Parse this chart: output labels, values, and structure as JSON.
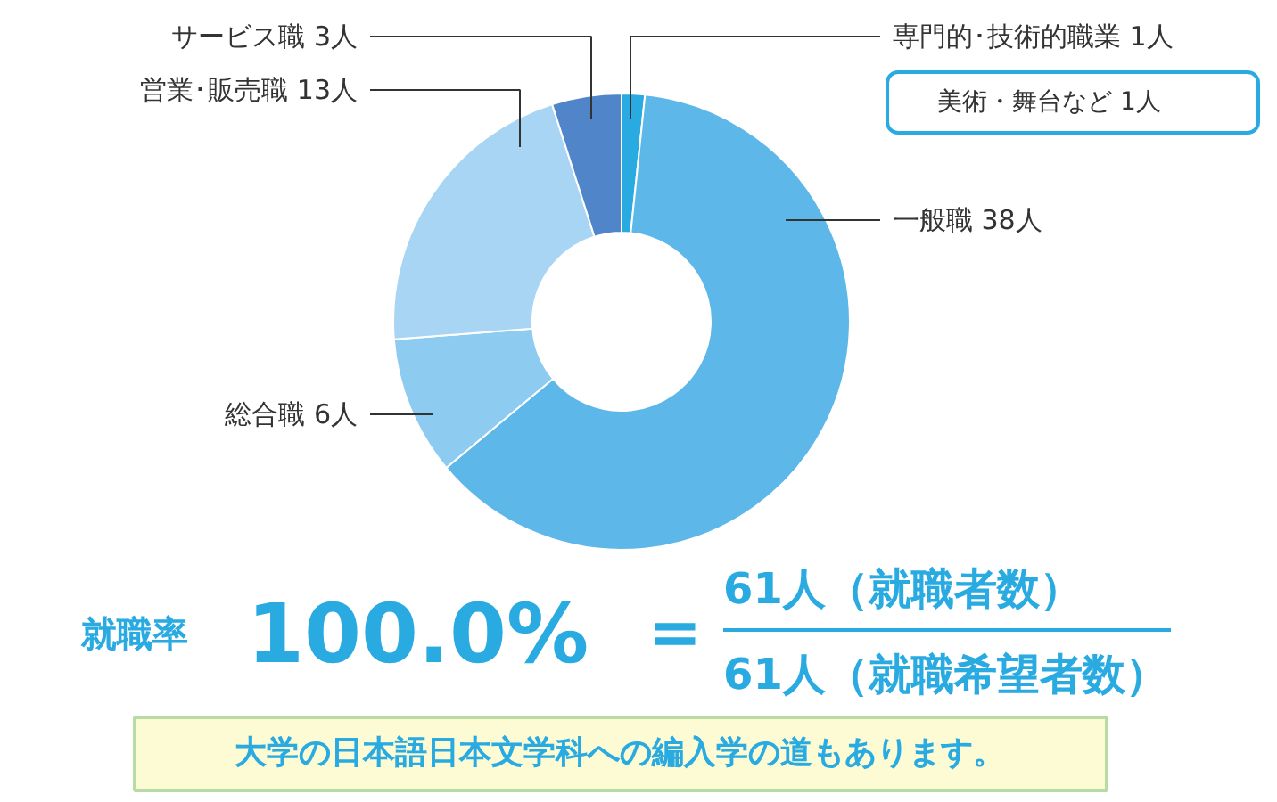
{
  "chart_data": {
    "type": "donut",
    "categories": [
      "専門的･技術的職業",
      "一般職",
      "総合職",
      "営業･販売職",
      "サービス職"
    ],
    "values": [
      1,
      38,
      6,
      13,
      3
    ],
    "value_labels": [
      "1人",
      "38人",
      "6人",
      "13人",
      "3人"
    ],
    "colors": [
      "#29abe2",
      "#5db7e8",
      "#8ecbf0",
      "#a8d5f3",
      "#5185c9"
    ],
    "annotations": [
      "美術・舞台など 1人",
      "就職率",
      "100.0%",
      "=",
      "61人（就職者数）",
      "61人（就職希望者数）",
      "大学の日本語日本文学科への編入学の道もあります。"
    ]
  }
}
